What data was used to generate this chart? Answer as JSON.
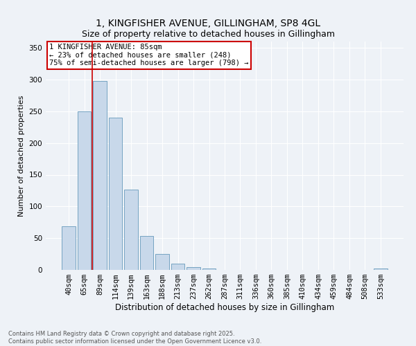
{
  "title": "1, KINGFISHER AVENUE, GILLINGHAM, SP8 4GL",
  "subtitle": "Size of property relative to detached houses in Gillingham",
  "xlabel": "Distribution of detached houses by size in Gillingham",
  "ylabel": "Number of detached properties",
  "bar_labels": [
    "40sqm",
    "65sqm",
    "89sqm",
    "114sqm",
    "139sqm",
    "163sqm",
    "188sqm",
    "213sqm",
    "237sqm",
    "262sqm",
    "287sqm",
    "311sqm",
    "336sqm",
    "360sqm",
    "385sqm",
    "410sqm",
    "434sqm",
    "459sqm",
    "484sqm",
    "508sqm",
    "533sqm"
  ],
  "bar_values": [
    69,
    250,
    298,
    240,
    127,
    54,
    25,
    10,
    4,
    2,
    0,
    0,
    0,
    0,
    0,
    0,
    0,
    0,
    0,
    0,
    2
  ],
  "bar_color": "#c8d8ea",
  "bar_edge_color": "#6699bb",
  "vline_color": "#cc0000",
  "vline_index": 1.5,
  "annotation_text": "1 KINGFISHER AVENUE: 85sqm\n← 23% of detached houses are smaller (248)\n75% of semi-detached houses are larger (798) →",
  "annotation_box_color": "#cc0000",
  "ylim": [
    0,
    360
  ],
  "yticks": [
    0,
    50,
    100,
    150,
    200,
    250,
    300,
    350
  ],
  "bg_color": "#eef2f7",
  "plot_bg_color": "#eef2f7",
  "footer_line1": "Contains HM Land Registry data © Crown copyright and database right 2025.",
  "footer_line2": "Contains public sector information licensed under the Open Government Licence v3.0.",
  "title_fontsize": 10,
  "subtitle_fontsize": 9,
  "xlabel_fontsize": 8.5,
  "ylabel_fontsize": 8,
  "tick_fontsize": 7.5,
  "annotation_fontsize": 7.5,
  "footer_fontsize": 6
}
